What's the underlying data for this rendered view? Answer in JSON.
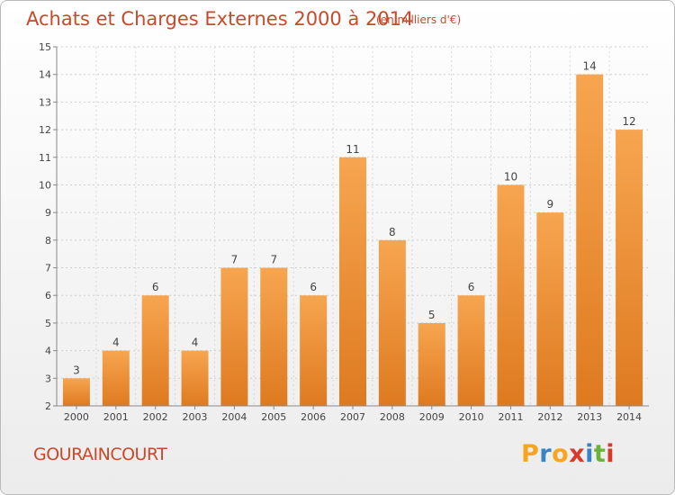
{
  "header": {
    "title": "Achats et Charges Externes 2000 à 2014",
    "subtitle": "(en milliers d'€)"
  },
  "footer": {
    "commune": "GOURAINCOURT"
  },
  "logo": {
    "letters": [
      "P",
      "r",
      "o",
      "x",
      "i",
      "t",
      "i"
    ],
    "colors": [
      "#f7a520",
      "#3a82c8",
      "#f7a520",
      "#d73a2a",
      "#3a82c8",
      "#69b33b",
      "#d73a2a"
    ]
  },
  "chart_data": {
    "type": "bar",
    "categories": [
      "2000",
      "2001",
      "2002",
      "2003",
      "2004",
      "2005",
      "2006",
      "2007",
      "2008",
      "2009",
      "2010",
      "2011",
      "2012",
      "2013",
      "2014"
    ],
    "values": [
      3,
      4,
      6,
      4,
      7,
      7,
      6,
      11,
      8,
      5,
      6,
      10,
      9,
      14,
      12
    ],
    "data_labels": [
      "3",
      "4",
      "6",
      "4",
      "7",
      "7",
      "6",
      "11",
      "8",
      "5",
      "6",
      "10",
      "9",
      "14",
      "12"
    ],
    "yticks": [
      2,
      3,
      4,
      5,
      6,
      7,
      8,
      9,
      10,
      11,
      12,
      13,
      14,
      15
    ],
    "ylim": [
      2,
      15
    ],
    "grid": true,
    "bar_color_top": "#f7a550",
    "bar_color_bottom": "#de7a20"
  }
}
